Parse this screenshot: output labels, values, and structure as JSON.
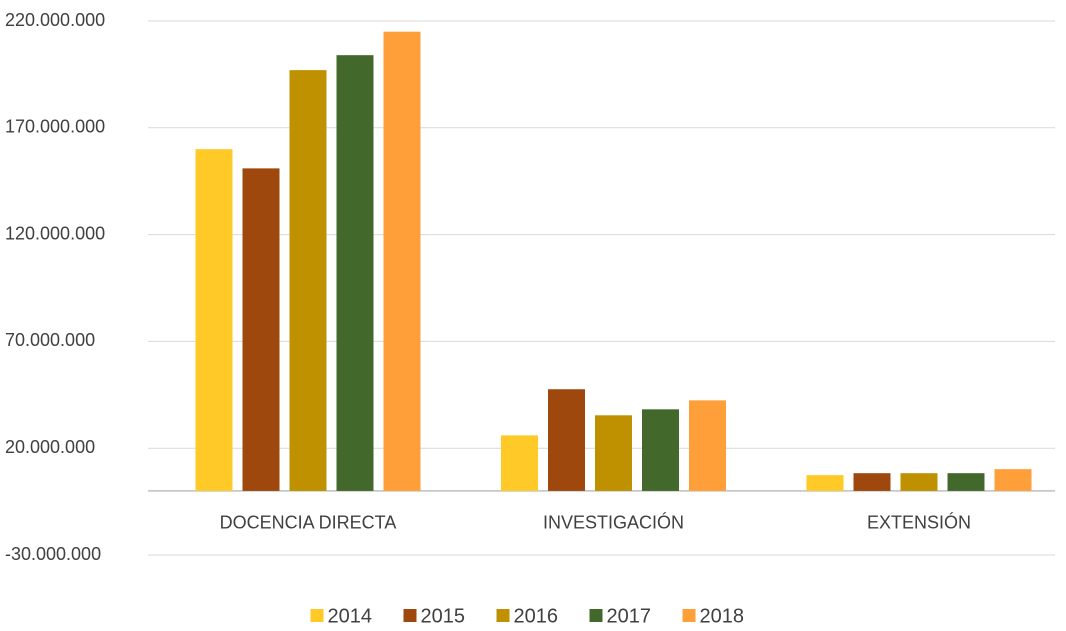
{
  "chart_data": {
    "type": "bar",
    "categories": [
      "DOCENCIA DIRECTA",
      "INVESTIGACIÓN",
      "EXTENSIÓN"
    ],
    "series": [
      {
        "name": "2014",
        "color": "#ffca28",
        "values": [
          160000000,
          26000000,
          7400000
        ]
      },
      {
        "name": "2015",
        "color": "#9e480e",
        "values": [
          151000000,
          47600000,
          8300000
        ]
      },
      {
        "name": "2016",
        "color": "#bf9000",
        "values": [
          197000000,
          35400000,
          8300000
        ]
      },
      {
        "name": "2017",
        "color": "#43682b",
        "values": [
          204000000,
          38200000,
          8300000
        ]
      },
      {
        "name": "2018",
        "color": "#ff9f3a",
        "values": [
          215000000,
          42400000,
          10200000
        ]
      }
    ],
    "ylim": [
      -30000000,
      220000000
    ],
    "yticks": [
      {
        "value": -30000000,
        "label": "-30.000.000"
      },
      {
        "value": 20000000,
        "label": "20.000.000"
      },
      {
        "value": 70000000,
        "label": "70.000.000"
      },
      {
        "value": 120000000,
        "label": "120.000.000"
      },
      {
        "value": 170000000,
        "label": "170.000.000"
      },
      {
        "value": 220000000,
        "label": "220.000.000"
      }
    ],
    "grid": true,
    "legend": "bottom"
  }
}
